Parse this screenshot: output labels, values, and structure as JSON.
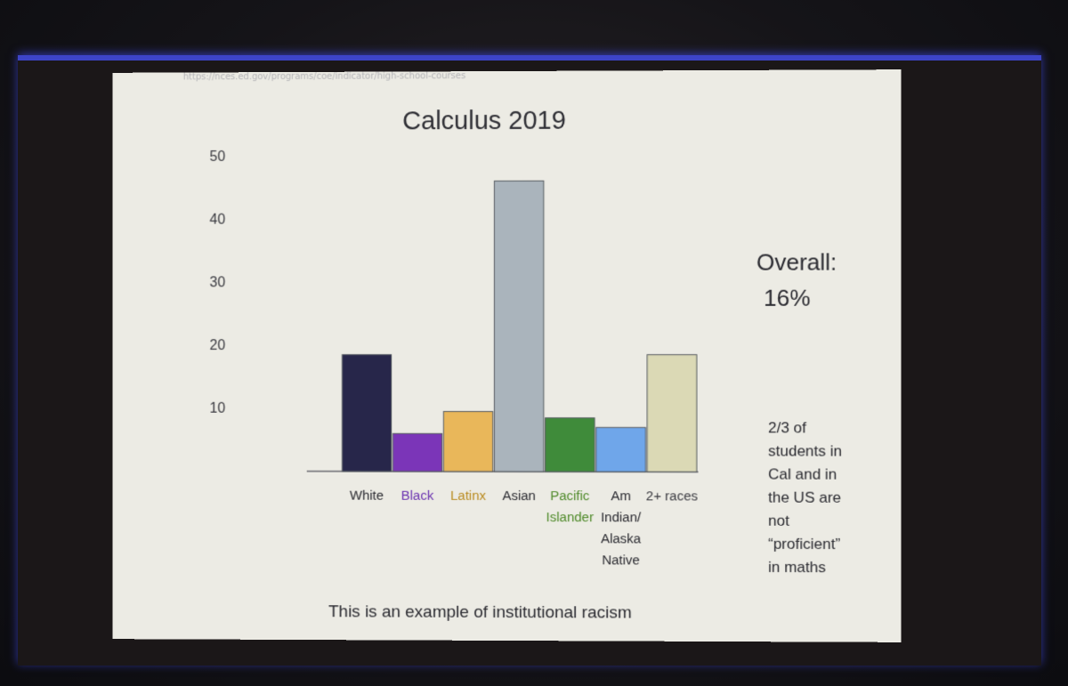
{
  "slide": {
    "url_text": "https://nces.ed.gov/programs/coe/indicator/high-school-courses",
    "overall_label": "Overall:",
    "overall_value": "16%",
    "note": "2/3 of\nstudents in\nCal and in\nthe US are\nnot\n“proficient”\nin maths",
    "caption": "This is an example of institutional racism"
  },
  "colors": {
    "background": "#ecebe4",
    "text": "#2b2b31"
  },
  "chart_data": {
    "type": "bar",
    "title": "Calculus 2019",
    "xlabel": "",
    "ylabel": "",
    "ylim": [
      0,
      50
    ],
    "yticks": [
      10,
      20,
      30,
      40,
      50
    ],
    "grid": false,
    "categories": [
      {
        "label": [
          "White"
        ],
        "value": 18.5,
        "color": "#27264a",
        "label_color": "#2b2b31"
      },
      {
        "label": [
          "Black"
        ],
        "value": 6,
        "color": "#7b35b8",
        "label_color": "#6a32b0"
      },
      {
        "label": [
          "Latinx"
        ],
        "value": 9.5,
        "color": "#e9b75a",
        "label_color": "#b98a1e"
      },
      {
        "label": [
          "Asian"
        ],
        "value": 46,
        "color": "#aab4bc",
        "label_color": "#2b2b31"
      },
      {
        "label": [
          "Pacific",
          "Islander"
        ],
        "value": 8.5,
        "color": "#3f8b3a",
        "label_color": "#4f8a2a"
      },
      {
        "label": [
          "Am",
          "Indian/",
          "Alaska",
          "Native"
        ],
        "value": 7,
        "color": "#6fa6ea",
        "label_color": "#2b2b31"
      },
      {
        "label": [
          "2+ races"
        ],
        "value": 18.5,
        "color": "#dbd9b5",
        "label_color": "#3a3a40"
      }
    ]
  }
}
